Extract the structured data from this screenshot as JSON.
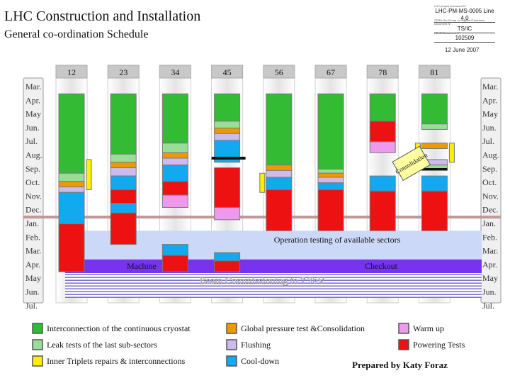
{
  "header": {
    "title": "LHC Construction and Installation",
    "subtitle": "General co-ordination Schedule",
    "doc_label_1": "LHC project document N°",
    "doc_value_1": "LHC-PM-MS-0005 Line 4.0",
    "doc_label_2": "CERN Div./Group or Supplier/Contractor Document N°",
    "doc_value_2": "TS/IC",
    "doc_label_3": "EDMS Document N°",
    "doc_value_3": "102509",
    "date": "12 June 2007"
  },
  "colors": {
    "interconnection": "#33bb33",
    "leak_tests": "#99dd99",
    "triplets": "#ffee00",
    "global_pressure": "#ee9900",
    "flushing": "#ccbbee",
    "cool_down": "#11aaee",
    "warm_up": "#ee99ee",
    "powering": "#ee1111",
    "operation_band": "#ccd8f8",
    "machine_band": "#7733ee",
    "shutdown_band": "#c09898"
  },
  "chart_data": {
    "type": "table",
    "title": "General co-ordination Schedule",
    "sectors": [
      "12",
      "23",
      "34",
      "45",
      "56",
      "67",
      "78",
      "81"
    ],
    "months": [
      "Mar.",
      "Apr.",
      "May",
      "Jun.",
      "Jul.",
      "Aug.",
      "Sep.",
      "Oct.",
      "Nov.",
      "Dec.",
      "Jan.",
      "Feb.",
      "Mar.",
      "Apr.",
      "May",
      "Jun.",
      "Jul."
    ],
    "tasks": [
      {
        "sector": 0,
        "phase": "interconnection",
        "start": 1.0,
        "end": 6.8
      },
      {
        "sector": 0,
        "phase": "leak_tests",
        "start": 6.8,
        "end": 7.4
      },
      {
        "sector": 0,
        "phase": "triplets",
        "start": 5.8,
        "end": 8.0,
        "side": "right"
      },
      {
        "sector": 0,
        "phase": "global_pressure",
        "start": 7.4,
        "end": 7.8
      },
      {
        "sector": 0,
        "phase": "flushing",
        "start": 7.8,
        "end": 8.2
      },
      {
        "sector": 0,
        "phase": "cool_down",
        "start": 8.2,
        "end": 10.5
      },
      {
        "sector": 0,
        "phase": "powering",
        "start": 10.5,
        "end": 14.0
      },
      {
        "sector": 1,
        "phase": "interconnection",
        "start": 1.0,
        "end": 5.4
      },
      {
        "sector": 1,
        "phase": "leak_tests",
        "start": 5.4,
        "end": 6.0
      },
      {
        "sector": 1,
        "phase": "global_pressure",
        "start": 6.0,
        "end": 6.4
      },
      {
        "sector": 1,
        "phase": "flushing",
        "start": 6.4,
        "end": 7.0
      },
      {
        "sector": 1,
        "phase": "cool_down",
        "start": 7.0,
        "end": 8.0
      },
      {
        "sector": 1,
        "phase": "powering",
        "start": 8.0,
        "end": 9.0
      },
      {
        "sector": 1,
        "phase": "cool_down",
        "start": 9.0,
        "end": 9.7
      },
      {
        "sector": 1,
        "phase": "powering",
        "start": 9.7,
        "end": 12.0
      },
      {
        "sector": 2,
        "phase": "interconnection",
        "start": 1.0,
        "end": 4.6
      },
      {
        "sector": 2,
        "phase": "leak_tests",
        "start": 4.6,
        "end": 5.3
      },
      {
        "sector": 2,
        "phase": "global_pressure",
        "start": 5.3,
        "end": 5.7
      },
      {
        "sector": 2,
        "phase": "flushing",
        "start": 5.7,
        "end": 6.2
      },
      {
        "sector": 2,
        "phase": "cool_down",
        "start": 6.2,
        "end": 7.4
      },
      {
        "sector": 2,
        "phase": "powering",
        "start": 7.4,
        "end": 8.4
      },
      {
        "sector": 2,
        "phase": "warm_up",
        "start": 8.4,
        "end": 9.3
      },
      {
        "sector": 2,
        "phase": "cool_down",
        "start": 12.0,
        "end": 12.8
      },
      {
        "sector": 2,
        "phase": "powering",
        "start": 12.8,
        "end": 14.0
      },
      {
        "sector": 3,
        "phase": "interconnection",
        "start": 1.0,
        "end": 3.0
      },
      {
        "sector": 3,
        "phase": "leak_tests",
        "start": 3.0,
        "end": 3.5
      },
      {
        "sector": 3,
        "phase": "global_pressure",
        "start": 3.5,
        "end": 3.9
      },
      {
        "sector": 3,
        "phase": "flushing",
        "start": 3.9,
        "end": 4.4
      },
      {
        "sector": 3,
        "phase": "cool_down",
        "start": 4.4,
        "end": 6.0
      },
      {
        "sector": 3,
        "phase": "powering",
        "start": 6.4,
        "end": 9.3
      },
      {
        "sector": 3,
        "phase": "warm_up",
        "start": 9.3,
        "end": 10.2
      },
      {
        "sector": 3,
        "phase": "cool_down",
        "start": 12.6,
        "end": 13.2
      },
      {
        "sector": 3,
        "phase": "powering",
        "start": 13.2,
        "end": 14.0
      },
      {
        "sector": 4,
        "phase": "interconnection",
        "start": 1.0,
        "end": 6.2
      },
      {
        "sector": 4,
        "phase": "global_pressure",
        "start": 6.2,
        "end": 6.6
      },
      {
        "sector": 4,
        "phase": "flushing",
        "start": 6.6,
        "end": 7.1
      },
      {
        "sector": 4,
        "phase": "cool_down",
        "start": 7.1,
        "end": 8.0
      },
      {
        "sector": 4,
        "phase": "powering",
        "start": 8.0,
        "end": 11.0
      },
      {
        "sector": 4,
        "phase": "triplets",
        "start": 6.8,
        "end": 8.2,
        "side": "left"
      },
      {
        "sector": 5,
        "phase": "interconnection",
        "start": 1.0,
        "end": 6.5
      },
      {
        "sector": 5,
        "phase": "leak_tests",
        "start": 6.5,
        "end": 6.8
      },
      {
        "sector": 5,
        "phase": "global_pressure",
        "start": 6.8,
        "end": 7.1
      },
      {
        "sector": 5,
        "phase": "flushing",
        "start": 7.1,
        "end": 7.5
      },
      {
        "sector": 5,
        "phase": "cool_down",
        "start": 7.5,
        "end": 8.0
      },
      {
        "sector": 5,
        "phase": "powering",
        "start": 8.0,
        "end": 11.0
      },
      {
        "sector": 6,
        "phase": "interconnection",
        "start": 1.0,
        "end": 3.0
      },
      {
        "sector": 6,
        "phase": "powering",
        "start": 3.0,
        "end": 4.5
      },
      {
        "sector": 6,
        "phase": "warm_up",
        "start": 4.5,
        "end": 5.3
      },
      {
        "sector": 6,
        "phase": "cool_down",
        "start": 7.0,
        "end": 8.1
      },
      {
        "sector": 6,
        "phase": "powering",
        "start": 8.1,
        "end": 11.0
      },
      {
        "sector": 7,
        "phase": "interconnection",
        "start": 1.0,
        "end": 3.2
      },
      {
        "sector": 7,
        "phase": "leak_tests",
        "start": 3.2,
        "end": 3.6
      },
      {
        "sector": 7,
        "phase": "global_pressure",
        "start": 4.6,
        "end": 5.0
      },
      {
        "sector": 7,
        "phase": "triplets",
        "start": 4.6,
        "end": 6.0,
        "side": "both"
      },
      {
        "sector": 7,
        "phase": "flushing",
        "start": 5.8,
        "end": 6.2
      },
      {
        "sector": 7,
        "phase": "leak_tests",
        "start": 6.2,
        "end": 6.6
      },
      {
        "sector": 7,
        "phase": "cool_down",
        "start": 7.0,
        "end": 8.1
      },
      {
        "sector": 7,
        "phase": "powering",
        "start": 8.1,
        "end": 11.0
      }
    ],
    "consolidation_label": "Consolidation",
    "operation_label": "Operation testing of available sectors",
    "machine_label": "Machine",
    "checkout_label": "Checkout",
    "commissioning_label": "Beam Commissioning to 7 TeV"
  },
  "legend": [
    {
      "key": "interconnection",
      "label": "Interconnection of the continuous cryostat"
    },
    {
      "key": "global_pressure",
      "label": "Global pressure test &Consolidation"
    },
    {
      "key": "warm_up",
      "label": "Warm up"
    },
    {
      "key": "leak_tests",
      "label": "Leak tests of the last sub-sectors"
    },
    {
      "key": "flushing",
      "label": "Flushing"
    },
    {
      "key": "powering",
      "label": "Powering Tests"
    },
    {
      "key": "triplets",
      "label": "Inner Triplets repairs & interconnections"
    },
    {
      "key": "cool_down",
      "label": "Cool-down"
    }
  ],
  "footer": {
    "prepared": "Prepared by Katy Foraz"
  }
}
